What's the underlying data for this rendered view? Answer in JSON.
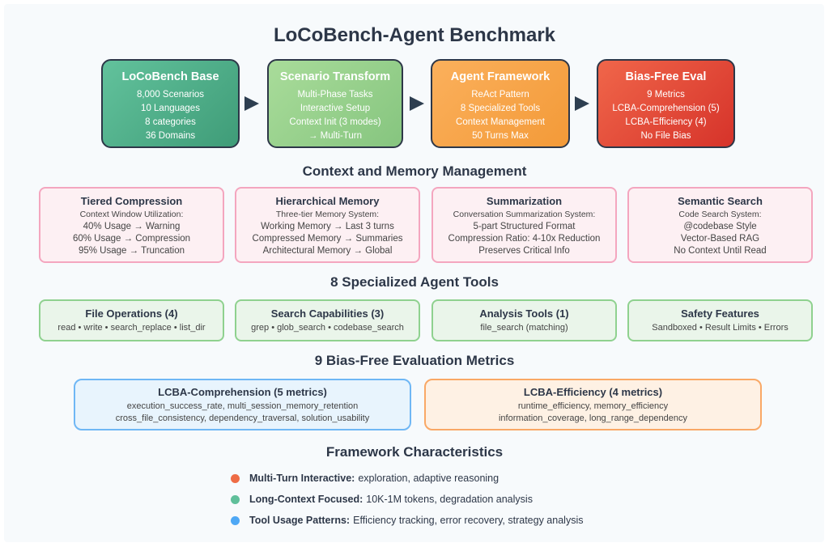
{
  "title": "LoCoBench-Agent Benchmark",
  "pipeline": [
    {
      "title": "LoCoBench Base",
      "lines": [
        "8,000 Scenarios",
        "10 Languages",
        "8 categories",
        "36 Domains"
      ]
    },
    {
      "title": "Scenario Transform",
      "lines": [
        "Multi-Phase Tasks",
        "Interactive Setup",
        "Context Init (3 modes)",
        "→ Multi-Turn"
      ]
    },
    {
      "title": "Agent Framework",
      "lines": [
        "ReAct Pattern",
        "8 Specialized Tools",
        "Context Management",
        "50 Turns Max"
      ]
    },
    {
      "title": "Bias-Free Eval",
      "lines": [
        "9 Metrics",
        "LCBA-Comprehension (5)",
        "LCBA-Efficiency (4)",
        "No File Bias"
      ]
    }
  ],
  "memory": {
    "heading": "Context and Memory Management",
    "cards": [
      {
        "title": "Tiered Compression",
        "subtitle": "Context Window Utilization:",
        "lines": [
          "40% Usage → Warning",
          "60% Usage → Compression",
          "95% Usage → Truncation"
        ]
      },
      {
        "title": "Hierarchical Memory",
        "subtitle": "Three-tier Memory System:",
        "lines": [
          "Working Memory → Last 3 turns",
          "Compressed Memory → Summaries",
          "Architectural Memory → Global"
        ]
      },
      {
        "title": "Summarization",
        "subtitle": "Conversation Summarization System:",
        "lines": [
          "5-part Structured Format",
          "Compression Ratio: 4-10x Reduction",
          "Preserves Critical Info"
        ]
      },
      {
        "title": "Semantic Search",
        "subtitle": "Code Search System:",
        "lines": [
          "@codebase Style",
          "Vector-Based RAG",
          "No Context Until Read"
        ]
      }
    ]
  },
  "tools": {
    "heading": "8 Specialized Agent Tools",
    "cards": [
      {
        "title": "File Operations (4)",
        "line": "read • write • search_replace • list_dir"
      },
      {
        "title": "Search Capabilities (3)",
        "line": "grep • glob_search • codebase_search"
      },
      {
        "title": "Analysis Tools (1)",
        "line": "file_search (matching)"
      },
      {
        "title": "Safety Features",
        "line": "Sandboxed • Result Limits • Errors"
      }
    ]
  },
  "metrics": {
    "heading": "9 Bias-Free Evaluation Metrics",
    "cards": [
      {
        "title": "LCBA-Comprehension (5 metrics)",
        "lines": [
          "execution_success_rate, multi_session_memory_retention",
          "cross_file_consistency, dependency_traversal, solution_usability"
        ]
      },
      {
        "title": "LCBA-Efficiency (4 metrics)",
        "lines": [
          "runtime_efficiency, memory_efficiency",
          "information_coverage, long_range_dependency"
        ]
      }
    ]
  },
  "characteristics": {
    "heading": "Framework Characteristics",
    "items": [
      {
        "label": "Multi-Turn Interactive:",
        "text": "exploration, adaptive reasoning",
        "color": "#ee6c45"
      },
      {
        "label": "Long-Context Focused:",
        "text": "10K-1M tokens, degradation analysis",
        "color": "#5fbf9a"
      },
      {
        "label": "Tool Usage Patterns:",
        "text": "Efficiency tracking, error recovery, strategy analysis",
        "color": "#4ea8f5"
      }
    ]
  }
}
